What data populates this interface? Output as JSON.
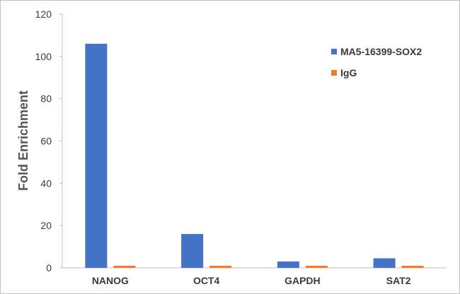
{
  "chart_data": {
    "type": "bar",
    "title": "",
    "xlabel": "",
    "ylabel": "Fold Enrichment",
    "ylim": [
      0,
      120
    ],
    "yticks": [
      0,
      20,
      40,
      60,
      80,
      100,
      120
    ],
    "grid": false,
    "legend_position": "top-right",
    "categories": [
      "NANOG",
      "OCT4",
      "GAPDH",
      "SAT2"
    ],
    "series": [
      {
        "name": "MA5-16399-SOX2",
        "color": "#4472c4",
        "values": [
          106,
          16,
          3,
          4.5
        ]
      },
      {
        "name": "IgG",
        "color": "#ed7d31",
        "values": [
          1,
          1,
          1,
          1
        ]
      }
    ]
  }
}
